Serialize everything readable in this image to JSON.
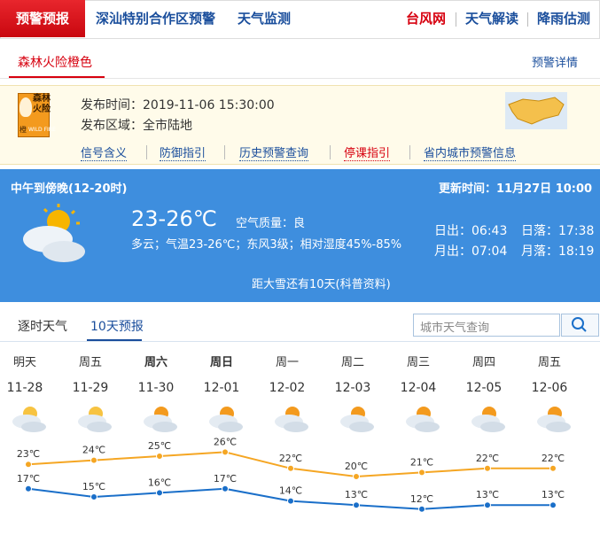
{
  "nav": {
    "tabs": [
      "预警预报",
      "深汕特别合作区预警",
      "天气监测"
    ],
    "links": [
      "台风网",
      "天气解读",
      "降雨估测"
    ]
  },
  "alert": {
    "title": "森林火险橙色",
    "detail": "预警详情",
    "icon": {
      "lines": [
        "森林",
        "火险"
      ],
      "level": "橙",
      "en": "WILD FIRE"
    },
    "time": "发布时间：2019-11-06 15:30:00",
    "area": "发布区域：全市陆地",
    "links": [
      "信号含义",
      "防御指引",
      "历史预警查询",
      "停课指引",
      "省内城市预警信息"
    ]
  },
  "weather": {
    "period": "中午到傍晚(12-20时)",
    "updated": "更新时间：11月27日 10:00",
    "temp": "23-26℃",
    "air": "空气质量：良",
    "desc": "多云；气温23-26℃；东风3级；相对湿度45%-85%",
    "sunrise": "日出：06:43",
    "sunset": "日落：17:38",
    "moonrise": "月出：07:04",
    "moonset": "月落：18:19",
    "note": "距大雪还有10天(科普资料)"
  },
  "forecast": {
    "tabs": [
      "逐时天气",
      "10天预报"
    ],
    "search": "城市天气查询",
    "weekdays": [
      "明天",
      "周五",
      "周六",
      "周日",
      "周一",
      "周二",
      "周三",
      "周四",
      "周五"
    ],
    "dates": [
      "11-28",
      "11-29",
      "11-30",
      "12-01",
      "12-02",
      "12-03",
      "12-04",
      "12-05",
      "12-06"
    ],
    "highs": [
      23,
      24,
      25,
      26,
      22,
      20,
      21,
      22,
      22
    ],
    "high_labels": [
      "23℃",
      "24℃",
      "25℃",
      "26℃",
      "22℃",
      "20℃",
      "21℃",
      "22℃",
      "22℃"
    ],
    "lows": [
      17,
      15,
      16,
      17,
      14,
      13,
      12,
      13,
      13
    ],
    "low_labels": [
      "17℃",
      "15℃",
      "16℃",
      "17℃",
      "14℃",
      "13℃",
      "12℃",
      "13℃",
      "13℃"
    ],
    "high_color": "#f5a623",
    "low_color": "#1a6fc9"
  }
}
